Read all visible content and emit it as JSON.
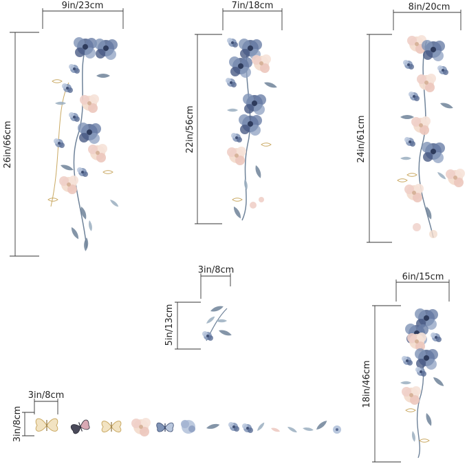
{
  "dimensions": {
    "decal_1": {
      "width": "9in/23cm",
      "height": "26in/66cm"
    },
    "decal_2": {
      "width": "7in/18cm",
      "height": "22in/56cm"
    },
    "decal_3": {
      "width": "8in/20cm",
      "height": "24in/61cm"
    },
    "decal_4": {
      "width": "3in/8cm",
      "height": "5in/13cm"
    },
    "decal_5": {
      "width": "6in/15cm",
      "height": "18in/46cm"
    },
    "small_decals": {
      "width": "3in/8cm",
      "height": "3in/8cm"
    }
  },
  "colors": {
    "navy": "#3f4f74",
    "slate_blue": "#7f93b6",
    "pale_blue": "#b9c7dd",
    "blush": "#efcfc8",
    "peach": "#f3dccd",
    "gold": "#c9a861",
    "leaf_gray": "#8fa3ad",
    "butterfly_pink": "#d9a9b4"
  },
  "icons": {
    "flower": "watercolor-flower-icon",
    "leaf": "leaf-icon",
    "butterfly": "butterfly-icon"
  }
}
